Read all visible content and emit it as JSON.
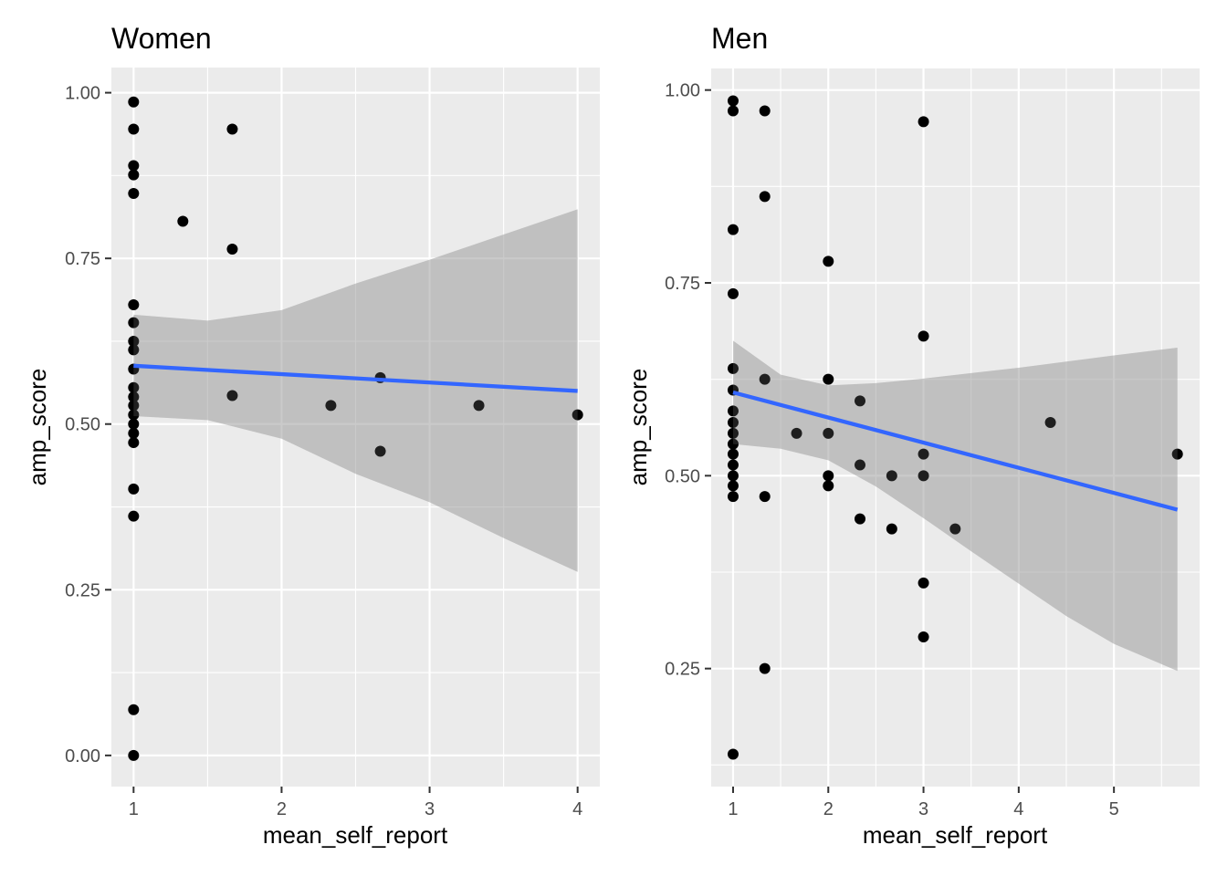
{
  "chart_data": [
    {
      "type": "scatter",
      "title": "Women",
      "xlabel": "mean_self_report",
      "ylabel": "amp_score",
      "xlim": [
        0.85,
        4.15
      ],
      "ylim": [
        -0.047,
        1.038
      ],
      "xticks": [
        1,
        2,
        3,
        4
      ],
      "xtick_labels": [
        "1",
        "2",
        "3",
        "4"
      ],
      "yticks": [
        0,
        0.25,
        0.5,
        0.75,
        1.0
      ],
      "ytick_labels": [
        "0.00",
        "0.25",
        "0.50",
        "0.75",
        "1.00"
      ],
      "grid": true,
      "points": [
        [
          1,
          0.986
        ],
        [
          1,
          0.945
        ],
        [
          1,
          0.89
        ],
        [
          1,
          0.876
        ],
        [
          1,
          0.848
        ],
        [
          1,
          0.68
        ],
        [
          1,
          0.653
        ],
        [
          1,
          0.625
        ],
        [
          1,
          0.612
        ],
        [
          1,
          0.583
        ],
        [
          1,
          0.555
        ],
        [
          1,
          0.541
        ],
        [
          1,
          0.528
        ],
        [
          1,
          0.514
        ],
        [
          1,
          0.5
        ],
        [
          1,
          0.486
        ],
        [
          1,
          0.472
        ],
        [
          1,
          0.402
        ],
        [
          1,
          0.361
        ],
        [
          1,
          0.069
        ],
        [
          1,
          0.0
        ],
        [
          1.333,
          0.806
        ],
        [
          1.667,
          0.945
        ],
        [
          1.667,
          0.764
        ],
        [
          1.667,
          0.543
        ],
        [
          2.333,
          0.528
        ],
        [
          2.667,
          0.57
        ],
        [
          2.667,
          0.459
        ],
        [
          3.333,
          0.528
        ],
        [
          4.0,
          0.514
        ]
      ],
      "fit_line": {
        "x": [
          1,
          4
        ],
        "y": [
          0.588,
          0.55
        ],
        "color": "#3366FF"
      },
      "ribbon": {
        "x": [
          1.0,
          1.5,
          2.0,
          2.5,
          3.0,
          3.5,
          4.0
        ],
        "upper": [
          0.665,
          0.656,
          0.672,
          0.712,
          0.748,
          0.786,
          0.824
        ],
        "lower": [
          0.512,
          0.506,
          0.478,
          0.425,
          0.382,
          0.328,
          0.277
        ],
        "color": "#999999"
      }
    },
    {
      "type": "scatter",
      "title": "Men",
      "xlabel": "mean_self_report",
      "ylabel": "amp_score",
      "xlim": [
        0.77,
        5.9
      ],
      "ylim": [
        0.097,
        1.028
      ],
      "xticks": [
        1,
        2,
        3,
        4,
        5
      ],
      "xtick_labels": [
        "1",
        "2",
        "3",
        "4",
        "5"
      ],
      "yticks": [
        0.25,
        0.5,
        0.75,
        1.0
      ],
      "ytick_labels": [
        "0.25",
        "0.50",
        "0.75",
        "1.00"
      ],
      "grid": true,
      "points": [
        [
          1,
          0.986
        ],
        [
          1,
          0.973
        ],
        [
          1,
          0.819
        ],
        [
          1,
          0.736
        ],
        [
          1,
          0.639
        ],
        [
          1,
          0.611
        ],
        [
          1,
          0.584
        ],
        [
          1,
          0.569
        ],
        [
          1,
          0.555
        ],
        [
          1,
          0.541
        ],
        [
          1,
          0.528
        ],
        [
          1,
          0.514
        ],
        [
          1,
          0.5
        ],
        [
          1,
          0.487
        ],
        [
          1,
          0.473
        ],
        [
          1,
          0.139
        ],
        [
          1.333,
          0.973
        ],
        [
          1.333,
          0.862
        ],
        [
          1.333,
          0.625
        ],
        [
          1.333,
          0.473
        ],
        [
          1.333,
          0.25
        ],
        [
          1.667,
          0.555
        ],
        [
          2,
          0.778
        ],
        [
          2,
          0.625
        ],
        [
          2,
          0.555
        ],
        [
          2,
          0.5
        ],
        [
          2,
          0.487
        ],
        [
          2.333,
          0.597
        ],
        [
          2.333,
          0.514
        ],
        [
          2.333,
          0.444
        ],
        [
          2.667,
          0.5
        ],
        [
          2.667,
          0.431
        ],
        [
          3,
          0.959
        ],
        [
          3,
          0.681
        ],
        [
          3,
          0.528
        ],
        [
          3,
          0.5
        ],
        [
          3,
          0.361
        ],
        [
          3,
          0.291
        ],
        [
          3.333,
          0.431
        ],
        [
          4.333,
          0.569
        ],
        [
          5.667,
          0.528
        ]
      ],
      "fit_line": {
        "x": [
          1,
          5.667
        ],
        "y": [
          0.608,
          0.456
        ],
        "color": "#3366FF"
      },
      "ribbon": {
        "x": [
          1.0,
          1.5,
          2.0,
          2.5,
          3.0,
          3.5,
          4.0,
          4.5,
          5.0,
          5.667
        ],
        "upper": [
          0.675,
          0.631,
          0.617,
          0.62,
          0.626,
          0.633,
          0.64,
          0.648,
          0.656,
          0.666
        ],
        "lower": [
          0.541,
          0.535,
          0.52,
          0.486,
          0.445,
          0.402,
          0.36,
          0.318,
          0.282,
          0.247
        ],
        "color": "#999999"
      }
    }
  ]
}
